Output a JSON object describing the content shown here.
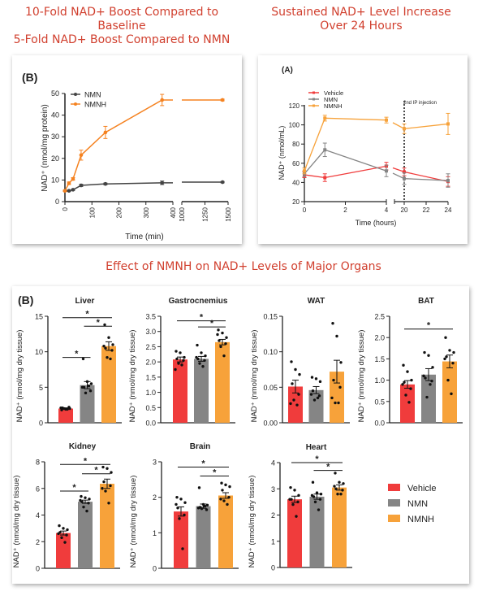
{
  "headlines": {
    "left_line1": "10-Fold NAD+ Boost Compared to Baseline",
    "left_line2": "5-Fold NAD+ Boost Compared to NMN",
    "right_line1": "Sustained NAD+ Level Increase",
    "right_line2": "Over 24 Hours",
    "middle": "Effect of NMNH on NAD+ Levels of Major Organs"
  },
  "colors": {
    "headline": "#d1402f",
    "vehicle": "#f03c3c",
    "nmn": "#858585",
    "nmnh": "#f7a23a",
    "line_nmn": "#444444",
    "line_nmnh": "#f58220"
  },
  "chart_data": [
    {
      "type": "line",
      "panel_label": "(B)",
      "xlabel": "Time (min)",
      "ylabel": "NAD⁺ (nmol/mg protein)",
      "ylim": [
        0,
        50
      ],
      "yticks": [
        "0",
        "10",
        "20",
        "30",
        "40",
        "50"
      ],
      "xticks": [
        "0",
        "100",
        "200",
        "300",
        "400",
        "1000",
        "1250",
        "1500"
      ],
      "x_axis_break": [
        400,
        1000
      ],
      "legend_position": "top-left",
      "x": [
        0,
        15,
        30,
        60,
        150,
        360,
        1440
      ],
      "series": [
        {
          "name": "NMN",
          "values": [
            5,
            5,
            5.5,
            7.5,
            8.2,
            8.7,
            9
          ],
          "errors": [
            0.3,
            0.3,
            0.3,
            0.5,
            0.4,
            0.8,
            0.3
          ]
        },
        {
          "name": "NMNH",
          "values": [
            5,
            8.5,
            10.5,
            21.5,
            32,
            47,
            47
          ],
          "errors": [
            0.3,
            0.6,
            0.6,
            2.3,
            2.8,
            2.6,
            0.4
          ]
        }
      ]
    },
    {
      "type": "line",
      "panel_label": "(A)",
      "xlabel": "Time (hours)",
      "ylabel": "NAD⁺ (nmol/mL)",
      "ylim": [
        20,
        120
      ],
      "yticks": [
        "20",
        "40",
        "60",
        "80",
        "100",
        "120"
      ],
      "xticks": [
        "0",
        "2",
        "4",
        "20",
        "22",
        "24"
      ],
      "x_axis_break": [
        4,
        20
      ],
      "annotation": "2nd IP injection",
      "annotation_x": 20,
      "legend_position": "top-left",
      "x": [
        0,
        1,
        4,
        20,
        24
      ],
      "series": [
        {
          "name": "Vehicle",
          "values": [
            48,
            45,
            57,
            51,
            41
          ],
          "errors": [
            3,
            4,
            4,
            4,
            5
          ]
        },
        {
          "name": "NMN",
          "values": [
            49,
            74,
            52,
            44,
            42
          ],
          "errors": [
            3,
            7,
            6,
            6,
            7
          ]
        },
        {
          "name": "NMNH",
          "values": [
            52,
            107,
            105,
            96,
            101
          ],
          "errors": [
            3,
            3,
            3,
            5,
            11
          ]
        }
      ]
    },
    {
      "type": "bar",
      "panel_label": "(B)",
      "ylabel": "NAD⁺ (nmol/mg dry tissue)",
      "categories": [
        "Vehicle",
        "NMN",
        "NMNH"
      ],
      "legend": [
        "Vehicle",
        "NMN",
        "NMNH"
      ],
      "legend_position": "right",
      "panels": [
        {
          "title": "Liver",
          "ylim": [
            0,
            15
          ],
          "yticks": [
            "0",
            "5",
            "10",
            "15"
          ],
          "means": [
            2.0,
            5.3,
            10.8
          ],
          "sem": [
            0.1,
            0.5,
            0.6
          ],
          "points": [
            [
              1.8,
              1.9,
              2.0,
              2.1,
              2.2,
              2.0,
              1.9,
              2.1
            ],
            [
              9.0,
              5.8,
              5.5,
              5.0,
              4.5,
              4.2,
              5.2,
              5.0
            ],
            [
              13.8,
              12.0,
              11.0,
              10.5,
              10.2,
              9.2,
              9.0,
              10.8
            ]
          ],
          "significance": [
            {
              "pair": [
                0,
                2
              ],
              "y": 14.8,
              "label": "*"
            },
            {
              "pair": [
                1,
                2
              ],
              "y": 13.6,
              "label": "*"
            },
            {
              "pair": [
                0,
                1
              ],
              "y": 9.2,
              "label": "*"
            }
          ]
        },
        {
          "title": "Gastrocnemius",
          "ylim": [
            0,
            3.5
          ],
          "yticks": [
            "0.0",
            "0.5",
            "1.0",
            "1.5",
            "2.0",
            "2.5",
            "3.0",
            "3.5"
          ],
          "means": [
            2.08,
            2.1,
            2.65
          ],
          "sem": [
            0.08,
            0.08,
            0.09
          ],
          "points": [
            [
              2.35,
              2.3,
              2.15,
              2.1,
              2.05,
              1.95,
              1.9,
              1.75
            ],
            [
              2.55,
              2.3,
              2.2,
              2.1,
              2.05,
              1.95,
              1.85,
              2.15
            ],
            [
              3.05,
              2.95,
              2.8,
              2.7,
              2.6,
              2.5,
              2.2,
              2.9
            ]
          ],
          "significance": [
            {
              "pair": [
                0,
                2
              ],
              "y": 3.35,
              "label": "*"
            },
            {
              "pair": [
                1,
                2
              ],
              "y": 3.15,
              "label": "*"
            }
          ]
        },
        {
          "title": "WAT",
          "ylim": [
            0,
            0.15
          ],
          "yticks": [
            "0.00",
            "0.05",
            "0.10",
            "0.15"
          ],
          "means": [
            0.051,
            0.046,
            0.072
          ],
          "sem": [
            0.009,
            0.005,
            0.016
          ],
          "points": [
            [
              0.086,
              0.075,
              0.068,
              0.055,
              0.04,
              0.032,
              0.025,
              0.027
            ],
            [
              0.064,
              0.062,
              0.058,
              0.045,
              0.038,
              0.032,
              0.035,
              0.04
            ],
            [
              0.14,
              0.122,
              0.085,
              0.06,
              0.05,
              0.028,
              0.028,
              0.035
            ]
          ],
          "significance": []
        },
        {
          "title": "BAT",
          "ylim": [
            0,
            2.5
          ],
          "yticks": [
            "0.0",
            "0.5",
            "1.0",
            "1.5",
            "2.0",
            "2.5"
          ],
          "means": [
            0.9,
            1.13,
            1.44
          ],
          "sem": [
            0.09,
            0.14,
            0.15
          ],
          "points": [
            [
              1.35,
              1.2,
              1.0,
              0.95,
              0.8,
              0.65,
              0.48,
              0.9
            ],
            [
              1.65,
              1.58,
              1.3,
              1.05,
              0.98,
              0.6,
              0.9,
              1.1
            ],
            [
              2.0,
              1.7,
              1.65,
              1.55,
              1.4,
              1.0,
              0.68,
              1.5
            ]
          ],
          "significance": [
            {
              "pair": [
                0,
                2
              ],
              "y": 2.2,
              "label": "*"
            }
          ]
        },
        {
          "title": "Kidney",
          "ylim": [
            0,
            8
          ],
          "yticks": [
            "0",
            "2",
            "4",
            "6",
            "8"
          ],
          "means": [
            2.65,
            5.0,
            6.35
          ],
          "sem": [
            0.15,
            0.12,
            0.35
          ],
          "points": [
            [
              3.2,
              3.0,
              2.9,
              2.7,
              2.5,
              2.3,
              1.95,
              2.6
            ],
            [
              5.4,
              5.3,
              5.2,
              5.0,
              4.9,
              4.6,
              4.3,
              5.1
            ],
            [
              7.6,
              7.5,
              7.2,
              6.5,
              6.2,
              5.8,
              4.9,
              6.0
            ]
          ],
          "significance": [
            {
              "pair": [
                0,
                2
              ],
              "y": 7.8,
              "label": "*"
            },
            {
              "pair": [
                1,
                2
              ],
              "y": 7.1,
              "label": "*"
            },
            {
              "pair": [
                0,
                1
              ],
              "y": 5.8,
              "label": "*"
            }
          ]
        },
        {
          "title": "Brain",
          "ylim": [
            0,
            3
          ],
          "yticks": [
            "0",
            "1",
            "2",
            "3"
          ],
          "means": [
            1.6,
            1.75,
            2.05
          ],
          "sem": [
            0.13,
            0.06,
            0.08
          ],
          "points": [
            [
              2.0,
              1.95,
              1.85,
              1.7,
              1.5,
              1.4,
              0.55,
              1.8
            ],
            [
              2.27,
              1.8,
              1.78,
              1.72,
              1.65,
              1.68,
              1.75,
              1.7
            ],
            [
              2.4,
              2.35,
              2.3,
              2.2,
              2.0,
              1.9,
              1.8,
              1.95
            ]
          ],
          "significance": [
            {
              "pair": [
                0,
                2
              ],
              "y": 2.85,
              "label": "*"
            },
            {
              "pair": [
                1,
                2
              ],
              "y": 2.6,
              "label": "*"
            }
          ]
        },
        {
          "title": "Heart",
          "ylim": [
            0,
            4
          ],
          "yticks": [
            "0",
            "1",
            "2",
            "3",
            "4"
          ],
          "means": [
            2.6,
            2.7,
            3.05
          ],
          "sem": [
            0.12,
            0.1,
            0.1
          ],
          "points": [
            [
              3.05,
              2.95,
              2.75,
              2.6,
              2.5,
              2.4,
              1.95,
              2.6
            ],
            [
              3.25,
              2.85,
              2.8,
              2.7,
              2.6,
              2.5,
              2.2,
              2.75
            ],
            [
              3.6,
              3.25,
              3.2,
              3.0,
              2.95,
              2.8,
              2.8,
              3.1
            ]
          ],
          "significance": [
            {
              "pair": [
                0,
                2
              ],
              "y": 4.0,
              "label": "*"
            },
            {
              "pair": [
                1,
                2
              ],
              "y": 3.7,
              "label": "*"
            }
          ]
        }
      ]
    }
  ]
}
